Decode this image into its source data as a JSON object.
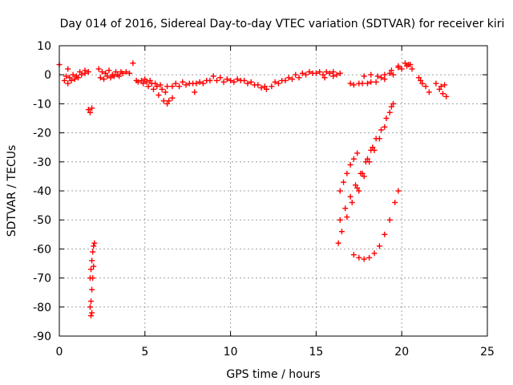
{
  "chart_data": {
    "type": "scatter",
    "title": "Day 014 of 2016, Sidereal Day-to-day VTEC variation (SDTVAR) for receiver kiri",
    "xlabel": "GPS time / hours",
    "ylabel": "SDTVAR / TECUs",
    "xlim": [
      0,
      25
    ],
    "ylim": [
      -90,
      10
    ],
    "xticks": [
      0,
      5,
      10,
      15,
      20,
      25
    ],
    "yticks": [
      10,
      0,
      -10,
      -20,
      -30,
      -40,
      -50,
      -60,
      -70,
      -80,
      -90
    ],
    "grid": true,
    "marker": "plus",
    "color": "#ff0000",
    "series": [
      {
        "points": [
          [
            0.3,
            -2
          ],
          [
            0.5,
            -3
          ],
          [
            0.7,
            -2
          ],
          [
            0.9,
            -1.5
          ],
          [
            1.1,
            -1
          ],
          [
            1.3,
            0
          ],
          [
            1.5,
            0.5
          ],
          [
            1.7,
            1
          ],
          [
            0.4,
            -0.5
          ],
          [
            0.6,
            -1
          ],
          [
            0.8,
            0
          ],
          [
            1.0,
            -0.5
          ],
          [
            1.2,
            1
          ],
          [
            1.5,
            1.5
          ],
          [
            0.0,
            3.5
          ],
          [
            0.5,
            2
          ],
          [
            1.7,
            -12
          ],
          [
            1.8,
            -13
          ],
          [
            1.9,
            -11.5
          ],
          [
            1.8,
            -80
          ],
          [
            1.85,
            -78
          ],
          [
            1.9,
            -74
          ],
          [
            1.95,
            -70
          ],
          [
            2.0,
            -66
          ],
          [
            1.9,
            -82
          ],
          [
            1.85,
            -83
          ],
          [
            1.8,
            -70
          ],
          [
            1.85,
            -67
          ],
          [
            1.9,
            -64
          ],
          [
            1.95,
            -61
          ],
          [
            2.0,
            -59
          ],
          [
            2.05,
            -58
          ],
          [
            2.3,
            2
          ],
          [
            2.5,
            1
          ],
          [
            2.7,
            0.5
          ],
          [
            2.9,
            1.5
          ],
          [
            3.1,
            0
          ],
          [
            3.3,
            1
          ],
          [
            3.5,
            -0.5
          ],
          [
            3.7,
            0.5
          ],
          [
            3.9,
            1
          ],
          [
            2.4,
            -1
          ],
          [
            2.6,
            -1.5
          ],
          [
            2.8,
            -0.5
          ],
          [
            3.0,
            -1
          ],
          [
            3.2,
            -0.5
          ],
          [
            3.4,
            0
          ],
          [
            3.6,
            1
          ],
          [
            4.1,
            0.5
          ],
          [
            4.3,
            4
          ],
          [
            4.5,
            -2
          ],
          [
            4.8,
            -2
          ],
          [
            5.1,
            -2.5
          ],
          [
            5.4,
            -3
          ],
          [
            5.7,
            -4
          ],
          [
            6.0,
            -5
          ],
          [
            6.2,
            -6
          ],
          [
            4.6,
            -2.5
          ],
          [
            4.9,
            -3
          ],
          [
            5.2,
            -4
          ],
          [
            5.5,
            -5
          ],
          [
            5.8,
            -7
          ],
          [
            6.1,
            -9
          ],
          [
            6.3,
            -10
          ],
          [
            5.0,
            -1.5
          ],
          [
            5.3,
            -2
          ],
          [
            5.6,
            -3
          ],
          [
            5.9,
            -3.5
          ],
          [
            6.3,
            -4
          ],
          [
            6.6,
            -8
          ],
          [
            6.4,
            -9
          ],
          [
            6.8,
            -3
          ],
          [
            7.2,
            -2.5
          ],
          [
            7.6,
            -3
          ],
          [
            8.0,
            -3
          ],
          [
            8.4,
            -3
          ],
          [
            8.8,
            -2
          ],
          [
            9.0,
            -0.5
          ],
          [
            6.6,
            -4
          ],
          [
            7.0,
            -4
          ],
          [
            7.4,
            -3.5
          ],
          [
            7.8,
            -3
          ],
          [
            8.2,
            -2.5
          ],
          [
            8.6,
            -2
          ],
          [
            7.9,
            -6
          ],
          [
            9.2,
            -2
          ],
          [
            9.6,
            -2.5
          ],
          [
            10.0,
            -2
          ],
          [
            10.4,
            -1.5
          ],
          [
            10.8,
            -2
          ],
          [
            11.2,
            -2.5
          ],
          [
            11.6,
            -3.5
          ],
          [
            12.0,
            -4
          ],
          [
            9.4,
            -1
          ],
          [
            9.8,
            -1.5
          ],
          [
            10.2,
            -2.5
          ],
          [
            10.6,
            -2
          ],
          [
            11.0,
            -3
          ],
          [
            11.4,
            -3.5
          ],
          [
            11.8,
            -4.5
          ],
          [
            12.1,
            -5
          ],
          [
            12.4,
            -4
          ],
          [
            12.8,
            -3
          ],
          [
            13.2,
            -2
          ],
          [
            13.6,
            -1.5
          ],
          [
            14.0,
            -1
          ],
          [
            14.4,
            0
          ],
          [
            14.8,
            0.5
          ],
          [
            15.2,
            1
          ],
          [
            12.6,
            -2.5
          ],
          [
            13.0,
            -2
          ],
          [
            13.4,
            -1
          ],
          [
            13.8,
            0
          ],
          [
            14.2,
            0.5
          ],
          [
            14.6,
            1
          ],
          [
            15.0,
            0.5
          ],
          [
            15.4,
            0
          ],
          [
            15.6,
            1
          ],
          [
            15.8,
            0.5
          ],
          [
            16.0,
            1
          ],
          [
            16.2,
            0
          ],
          [
            16.4,
            0.5
          ],
          [
            15.5,
            -1
          ],
          [
            16.0,
            -0.5
          ],
          [
            17.0,
            -3
          ],
          [
            17.5,
            -3
          ],
          [
            18.0,
            -3
          ],
          [
            18.5,
            -2.5
          ],
          [
            19.0,
            -1.5
          ],
          [
            19.5,
            0
          ],
          [
            20.0,
            2
          ],
          [
            20.4,
            3.5
          ],
          [
            17.2,
            -3.5
          ],
          [
            17.7,
            -3
          ],
          [
            18.2,
            -2.5
          ],
          [
            18.8,
            -1
          ],
          [
            19.3,
            0.5
          ],
          [
            19.8,
            2.5
          ],
          [
            20.3,
            3
          ],
          [
            20.6,
            2
          ],
          [
            17.8,
            -0.5
          ],
          [
            18.2,
            0
          ],
          [
            18.6,
            -0.5
          ],
          [
            19.0,
            0
          ],
          [
            19.4,
            1.5
          ],
          [
            19.8,
            3
          ],
          [
            20.2,
            4
          ],
          [
            20.5,
            3.5
          ],
          [
            21.0,
            -1
          ],
          [
            21.2,
            -3
          ],
          [
            21.4,
            -4
          ],
          [
            21.6,
            -6
          ],
          [
            21.1,
            -2
          ],
          [
            22.0,
            -3
          ],
          [
            22.2,
            -5
          ],
          [
            22.4,
            -6.5
          ],
          [
            22.6,
            -7.5
          ],
          [
            22.3,
            -4
          ],
          [
            22.5,
            -3.5
          ],
          [
            16.4,
            -40
          ],
          [
            16.6,
            -37
          ],
          [
            16.8,
            -34
          ],
          [
            17.0,
            -31
          ],
          [
            17.2,
            -29
          ],
          [
            17.4,
            -27
          ],
          [
            16.4,
            -50
          ],
          [
            16.7,
            -46
          ],
          [
            17.0,
            -42
          ],
          [
            17.3,
            -38
          ],
          [
            17.6,
            -34
          ],
          [
            17.9,
            -30
          ],
          [
            18.2,
            -26
          ],
          [
            18.5,
            -22
          ],
          [
            18.8,
            -19
          ],
          [
            19.1,
            -15
          ],
          [
            19.4,
            -11
          ],
          [
            16.3,
            -58
          ],
          [
            16.5,
            -54
          ],
          [
            16.8,
            -49
          ],
          [
            17.1,
            -44
          ],
          [
            17.4,
            -39
          ],
          [
            17.7,
            -34
          ],
          [
            18.0,
            -29
          ],
          [
            18.3,
            -25
          ],
          [
            17.5,
            -40
          ],
          [
            17.8,
            -35
          ],
          [
            18.1,
            -30
          ],
          [
            18.4,
            -26
          ],
          [
            18.7,
            -22
          ],
          [
            19.0,
            -18
          ],
          [
            19.3,
            -13
          ],
          [
            19.5,
            -10
          ],
          [
            17.2,
            -62
          ],
          [
            17.5,
            -63
          ],
          [
            17.8,
            -63.5
          ],
          [
            18.1,
            -63
          ],
          [
            18.4,
            -61.5
          ],
          [
            18.7,
            -59
          ],
          [
            19.0,
            -55
          ],
          [
            19.3,
            -50
          ],
          [
            19.6,
            -44
          ],
          [
            19.8,
            -40
          ]
        ]
      }
    ]
  }
}
